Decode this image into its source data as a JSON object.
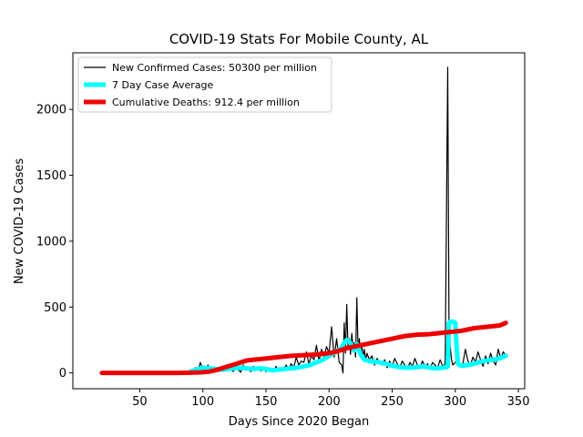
{
  "chart_data": {
    "type": "line",
    "title": "COVID-19 Stats For Mobile County, AL",
    "xlabel": "Days Since 2020 Began",
    "ylabel": "New COVID-19 Cases",
    "xlim": [
      -3,
      355
    ],
    "ylim": [
      -120,
      2430
    ],
    "xticks": [
      50,
      100,
      150,
      200,
      250,
      300,
      350
    ],
    "yticks": [
      0,
      500,
      1000,
      1500,
      2000
    ],
    "grid": false,
    "legend_position": "upper-left",
    "series": [
      {
        "name": "New Confirmed Cases: 50300 per million",
        "color": "#000000",
        "x": [
          20,
          30,
          40,
          50,
          60,
          70,
          80,
          90,
          92,
          94,
          96,
          98,
          100,
          102,
          104,
          106,
          108,
          110,
          112,
          114,
          116,
          118,
          120,
          122,
          124,
          126,
          128,
          130,
          132,
          134,
          136,
          138,
          140,
          142,
          144,
          146,
          148,
          150,
          152,
          154,
          156,
          158,
          160,
          162,
          164,
          166,
          168,
          170,
          172,
          174,
          176,
          178,
          180,
          182,
          184,
          186,
          188,
          190,
          192,
          194,
          196,
          198,
          200,
          202,
          204,
          206,
          208,
          210,
          211,
          212,
          213,
          214,
          215,
          216,
          217,
          218,
          219,
          220,
          221,
          222,
          223,
          224,
          225,
          226,
          227,
          228,
          229,
          230,
          232,
          234,
          236,
          238,
          240,
          242,
          244,
          246,
          248,
          250,
          252,
          254,
          256,
          258,
          260,
          262,
          264,
          266,
          268,
          270,
          272,
          274,
          276,
          278,
          280,
          282,
          284,
          286,
          288,
          290,
          292,
          294,
          295,
          296,
          297,
          298,
          300,
          302,
          304,
          306,
          308,
          310,
          312,
          314,
          316,
          318,
          320,
          322,
          324,
          326,
          328,
          330,
          332,
          334,
          336,
          338,
          340
        ],
        "y": [
          0,
          0,
          0,
          0,
          0,
          0,
          0,
          5,
          20,
          40,
          10,
          80,
          30,
          10,
          60,
          20,
          5,
          35,
          10,
          45,
          15,
          30,
          20,
          55,
          10,
          40,
          25,
          5,
          60,
          20,
          35,
          10,
          50,
          20,
          30,
          15,
          40,
          10,
          25,
          35,
          15,
          50,
          20,
          40,
          30,
          60,
          25,
          70,
          40,
          120,
          60,
          90,
          80,
          160,
          70,
          130,
          100,
          210,
          90,
          180,
          120,
          200,
          150,
          350,
          120,
          260,
          80,
          60,
          0,
          380,
          150,
          520,
          200,
          260,
          140,
          300,
          180,
          230,
          120,
          570,
          160,
          260,
          140,
          200,
          120,
          180,
          90,
          150,
          100,
          130,
          60,
          110,
          80,
          60,
          100,
          40,
          90,
          50,
          110,
          70,
          40,
          90,
          60,
          30,
          80,
          50,
          110,
          60,
          40,
          90,
          50,
          70,
          30,
          80,
          60,
          40,
          100,
          50,
          70,
          2320,
          400,
          200,
          100,
          60,
          80,
          100,
          50,
          70,
          180,
          90,
          60,
          120,
          80,
          160,
          100,
          50,
          130,
          70,
          150,
          90,
          60,
          180,
          110,
          160,
          130
        ]
      },
      {
        "name": "7 Day Case Average",
        "color": "#00ffff",
        "x": [
          90,
          95,
          100,
          105,
          110,
          115,
          120,
          125,
          130,
          135,
          140,
          145,
          150,
          155,
          160,
          165,
          170,
          175,
          180,
          185,
          190,
          195,
          200,
          205,
          210,
          212,
          214,
          216,
          218,
          220,
          222,
          225,
          228,
          232,
          236,
          240,
          245,
          250,
          255,
          260,
          265,
          270,
          275,
          280,
          285,
          290,
          293,
          294,
          295,
          296,
          298,
          300,
          301,
          302,
          303,
          305,
          310,
          315,
          320,
          325,
          330,
          335,
          340
        ],
        "y": [
          10,
          25,
          40,
          35,
          30,
          25,
          30,
          35,
          40,
          35,
          30,
          35,
          30,
          20,
          25,
          30,
          35,
          40,
          50,
          60,
          80,
          100,
          130,
          160,
          190,
          230,
          250,
          240,
          200,
          170,
          220,
          140,
          100,
          90,
          85,
          80,
          70,
          55,
          45,
          40,
          40,
          45,
          50,
          40,
          35,
          40,
          45,
          50,
          380,
          390,
          390,
          380,
          200,
          80,
          60,
          55,
          60,
          70,
          85,
          95,
          100,
          110,
          130
        ]
      },
      {
        "name": "Cumulative Deaths: 912.4 per million",
        "color": "#ee0000",
        "x": [
          20,
          40,
          60,
          80,
          90,
          100,
          105,
          110,
          115,
          120,
          125,
          130,
          135,
          140,
          145,
          150,
          155,
          160,
          165,
          170,
          175,
          180,
          185,
          190,
          195,
          200,
          205,
          210,
          215,
          220,
          225,
          230,
          235,
          240,
          245,
          250,
          255,
          260,
          265,
          270,
          275,
          280,
          285,
          290,
          295,
          300,
          305,
          310,
          315,
          320,
          325,
          330,
          335,
          340
        ],
        "y": [
          0,
          0,
          0,
          0,
          2,
          5,
          10,
          20,
          35,
          50,
          65,
          80,
          95,
          100,
          105,
          110,
          115,
          120,
          125,
          130,
          132,
          135,
          137,
          140,
          145,
          150,
          160,
          175,
          190,
          200,
          210,
          220,
          230,
          240,
          250,
          260,
          270,
          280,
          285,
          290,
          292,
          295,
          300,
          305,
          310,
          315,
          320,
          330,
          340,
          345,
          350,
          355,
          360,
          380
        ]
      }
    ]
  }
}
